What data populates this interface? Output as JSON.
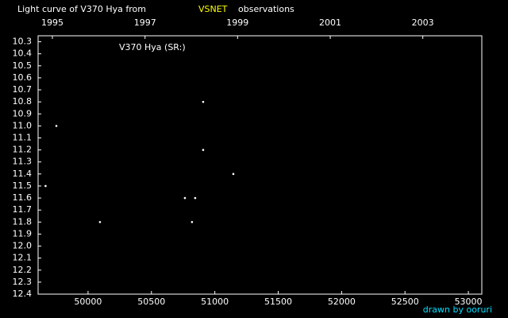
{
  "chart_data": {
    "type": "scatter",
    "title_parts": [
      "Light curve of V370 Hya from",
      "VSNET",
      "observations"
    ],
    "title_colors": [
      "#ffffff",
      "#ffff00",
      "#ffffff"
    ],
    "annotation": "V370 Hya (SR:)",
    "footer": "drawn by ooruri",
    "footer_color": "#00e0ff",
    "background": "#000000",
    "color": "#ffffff",
    "invert_y": true,
    "xlim": [
      49606,
      53106
    ],
    "ylim": [
      10.25,
      12.4
    ],
    "xticks": [
      50000,
      50500,
      51000,
      51500,
      52000,
      52500,
      53000
    ],
    "x2ticks": [
      {
        "value": 49718.5,
        "label": "1995"
      },
      {
        "value": 50449.5,
        "label": "1997"
      },
      {
        "value": 51179.5,
        "label": "1999"
      },
      {
        "value": 51910.5,
        "label": "2001"
      },
      {
        "value": 52640.5,
        "label": "2003"
      }
    ],
    "yticks": [
      10.3,
      10.4,
      10.5,
      10.6,
      10.7,
      10.8,
      10.9,
      {
        "value": 11,
        "label": "11.0"
      },
      11.1,
      11.2,
      11.3,
      11.4,
      11.5,
      11.6,
      11.7,
      11.8,
      11.9,
      {
        "value": 12,
        "label": "12.0"
      },
      12.1,
      12.2,
      12.3,
      12.4
    ],
    "x": [
      49665,
      49750,
      50094,
      50764,
      50845,
      50820,
      50908,
      50908,
      51146
    ],
    "values": [
      11.5,
      11.0,
      11.8,
      11.6,
      11.6,
      11.8,
      10.8,
      11.2,
      11.4
    ]
  }
}
